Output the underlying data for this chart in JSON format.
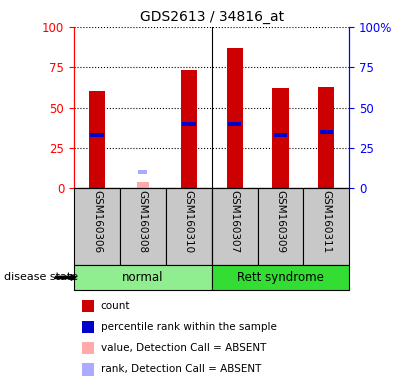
{
  "title": "GDS2613 / 34816_at",
  "samples": [
    "GSM160306",
    "GSM160308",
    "GSM160310",
    "GSM160307",
    "GSM160309",
    "GSM160311"
  ],
  "groups": [
    {
      "label": "normal",
      "color": "#90ee90",
      "start": 0,
      "end": 3
    },
    {
      "label": "Rett syndrome",
      "color": "#33dd33",
      "start": 3,
      "end": 6
    }
  ],
  "count_values": [
    60,
    null,
    73,
    87,
    62,
    63
  ],
  "percentile_values": [
    33,
    null,
    40,
    40,
    33,
    35
  ],
  "absent_value": [
    null,
    4,
    null,
    null,
    null,
    null
  ],
  "absent_rank": [
    null,
    10,
    null,
    null,
    null,
    null
  ],
  "bar_width": 0.35,
  "ylim": [
    0,
    100
  ],
  "count_color": "#cc0000",
  "percentile_color": "#0000cc",
  "absent_value_color": "#ffaaaa",
  "absent_rank_color": "#aaaaff",
  "grid_color": "black",
  "left_axis_color": "red",
  "right_axis_color": "blue",
  "legend_items": [
    {
      "label": "count",
      "color": "#cc0000"
    },
    {
      "label": "percentile rank within the sample",
      "color": "#0000cc"
    },
    {
      "label": "value, Detection Call = ABSENT",
      "color": "#ffaaaa"
    },
    {
      "label": "rank, Detection Call = ABSENT",
      "color": "#aaaaff"
    }
  ],
  "disease_state_label": "disease state",
  "sample_box_color": "#c8c8c8",
  "figsize": [
    4.11,
    3.84
  ],
  "dpi": 100
}
